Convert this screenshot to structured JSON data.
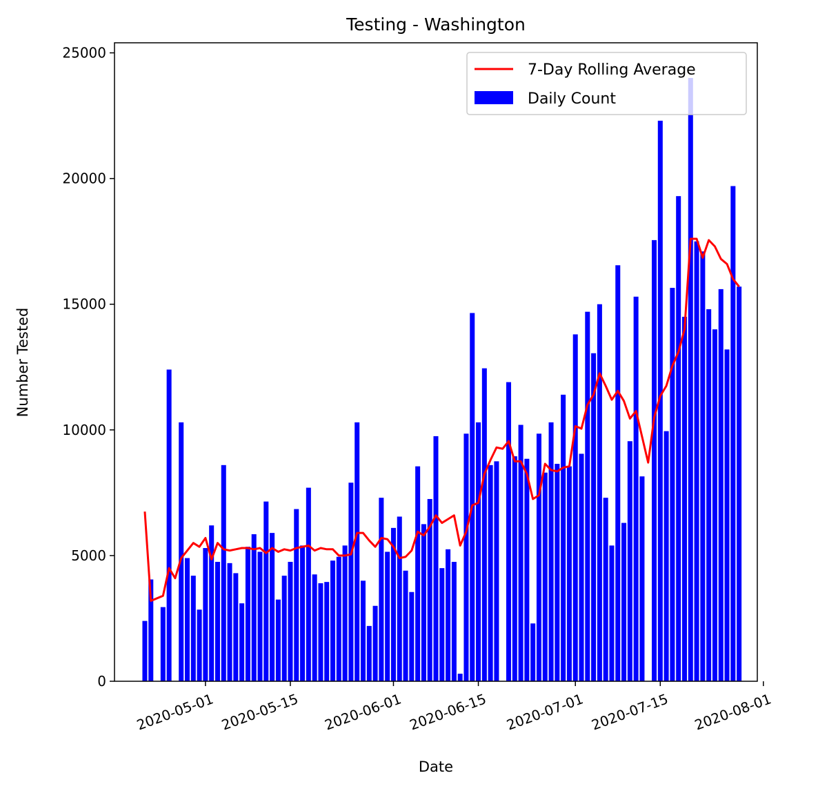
{
  "chart_data": {
    "type": "bar",
    "title": "Testing - Washington",
    "xlabel": "Date",
    "ylabel": "Number Tested",
    "x_start": "2020-04-21",
    "y_ticks": [
      "0",
      "5000",
      "10000",
      "15000",
      "20000",
      "25000"
    ],
    "x_ticks": [
      {
        "date": "2020-05-01",
        "label": "2020-05-01"
      },
      {
        "date": "2020-05-15",
        "label": "2020-05-15"
      },
      {
        "date": "2020-06-01",
        "label": "2020-06-01"
      },
      {
        "date": "2020-06-15",
        "label": "2020-06-15"
      },
      {
        "date": "2020-07-01",
        "label": "2020-07-01"
      },
      {
        "date": "2020-07-15",
        "label": "2020-07-15"
      },
      {
        "date": "2020-08-01",
        "label": "2020-08-01"
      }
    ],
    "xlim": [
      "2020-04-16",
      "2020-07-31"
    ],
    "ylim": [
      0,
      25400
    ],
    "legend": {
      "position": "top-right",
      "line_label": "7-Day Rolling Average",
      "bar_label": "Daily Count"
    },
    "colors": {
      "bars": "#0000ff",
      "line": "#ff0000"
    },
    "series": [
      {
        "name": "Daily Count",
        "type": "bar",
        "values": [
          2400,
          4050,
          0,
          2950,
          12400,
          0,
          10300,
          4900,
          4200,
          2850,
          5300,
          6200,
          4750,
          8600,
          4700,
          4300,
          3100,
          5350,
          5850,
          5150,
          7150,
          5900,
          3250,
          4200,
          4750,
          6850,
          5400,
          7700,
          4250,
          3900,
          3950,
          4800,
          4950,
          5400,
          7900,
          10300,
          4000,
          2200,
          3000,
          7300,
          5150,
          6100,
          6550,
          4400,
          3550,
          8550,
          6250,
          7250,
          9750,
          4500,
          5250,
          4750,
          300,
          9850,
          14650,
          10300,
          12450,
          8600,
          8750,
          0,
          11900,
          8950,
          10200,
          8850,
          2300,
          9850,
          8300,
          10300,
          8650,
          11400,
          8550,
          13800,
          9050,
          14700,
          13050,
          15000,
          7300,
          5400,
          16550,
          6300,
          9550,
          15300,
          8150,
          0,
          17550,
          22300,
          9950,
          15650,
          19300,
          14500,
          24000,
          17500,
          17100,
          14800,
          14000,
          15600,
          13200,
          19700,
          15700
        ]
      },
      {
        "name": "7-Day Rolling Average",
        "type": "line",
        "values": [
          6750,
          3200,
          null,
          3400,
          4500,
          4100,
          4900,
          5200,
          5500,
          5350,
          5700,
          4850,
          5500,
          5250,
          5200,
          5250,
          5300,
          5300,
          5250,
          5300,
          5100,
          5300,
          5150,
          5250,
          5200,
          5300,
          5350,
          5400,
          5200,
          5300,
          5250,
          5250,
          5000,
          5000,
          5050,
          5900,
          5900,
          5600,
          5350,
          5700,
          5650,
          5350,
          4900,
          4950,
          5200,
          5950,
          5800,
          6150,
          6600,
          6300,
          6450,
          6600,
          5400,
          5950,
          7000,
          7100,
          8250,
          8800,
          9300,
          9250,
          9550,
          8750,
          8750,
          8250,
          7250,
          7400,
          8650,
          8400,
          8350,
          8500,
          8550,
          10150,
          10050,
          11000,
          11400,
          12250,
          11750,
          11200,
          11550,
          11150,
          10450,
          10750,
          null,
          8700,
          10500,
          11350,
          11750,
          12550,
          13100,
          14000,
          17600,
          17600,
          16850,
          17550,
          17300,
          16800,
          16600,
          16000,
          15700
        ]
      }
    ]
  }
}
